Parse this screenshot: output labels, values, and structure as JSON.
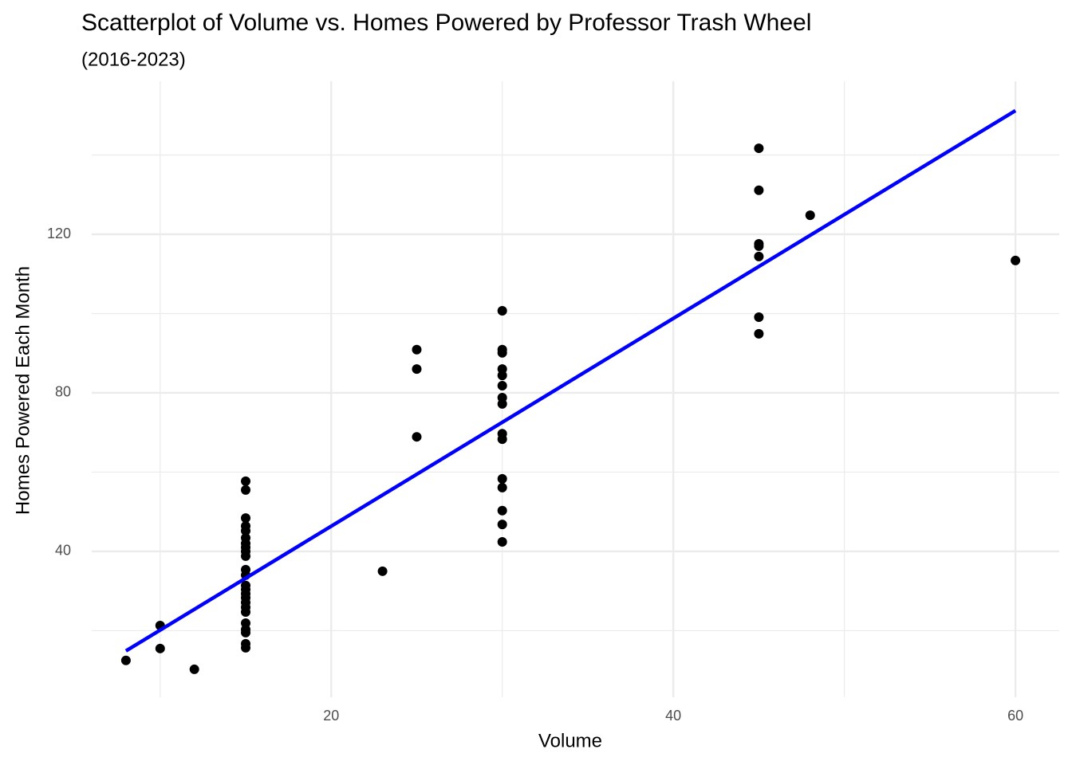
{
  "chart_data": {
    "type": "scatter",
    "title": "Scatterplot of Volume vs. Homes Powered by Professor Trash Wheel",
    "subtitle": "(2016-2023)",
    "x_label": "Volume",
    "y_label": "Homes Powered Each Month",
    "xlim": [
      6.0,
      62.56
    ],
    "xticks": [
      20,
      40,
      60
    ],
    "xminor": [
      10,
      30,
      50
    ],
    "ylim": [
      3.2,
      158.6
    ],
    "yticks": [
      40,
      80,
      120
    ],
    "yminor": [
      20,
      60,
      100,
      140
    ],
    "grid": true,
    "points": {
      "color": "#000000",
      "x": [
        8,
        10,
        10,
        12,
        15,
        15,
        15,
        15,
        15,
        15,
        15,
        15,
        15,
        15,
        15,
        15,
        15,
        15,
        15,
        15,
        15,
        15,
        15,
        15,
        15,
        15,
        15,
        15,
        23,
        25,
        25,
        25,
        30,
        30,
        30,
        30,
        30,
        30,
        30,
        30,
        30,
        30,
        30,
        30,
        30,
        30,
        30,
        45,
        45,
        45,
        45,
        45,
        45,
        45,
        48,
        60
      ],
      "values": [
        12.5,
        21.3,
        15.5,
        10.25,
        57.7,
        55.5,
        48.4,
        46.4,
        45.2,
        43.4,
        42.0,
        41.0,
        40.0,
        38.8,
        35.4,
        34.0,
        31.4,
        30.4,
        29.3,
        28.3,
        27.1,
        25.9,
        24.7,
        21.9,
        20.3,
        19.5,
        16.7,
        15.7,
        35.0,
        90.9,
        86.0,
        68.9,
        100.7,
        90.9,
        90.1,
        86.0,
        84.4,
        81.8,
        78.8,
        77.2,
        69.7,
        68.3,
        58.3,
        56.1,
        50.3,
        46.8,
        42.4,
        141.7,
        131.1,
        117.6,
        117.0,
        114.4,
        99.1,
        94.9,
        124.8,
        113.4
      ]
    },
    "fit_line": {
      "color": "#0000ff",
      "x": [
        8,
        60
      ],
      "values": [
        14.9,
        151.2
      ]
    }
  }
}
